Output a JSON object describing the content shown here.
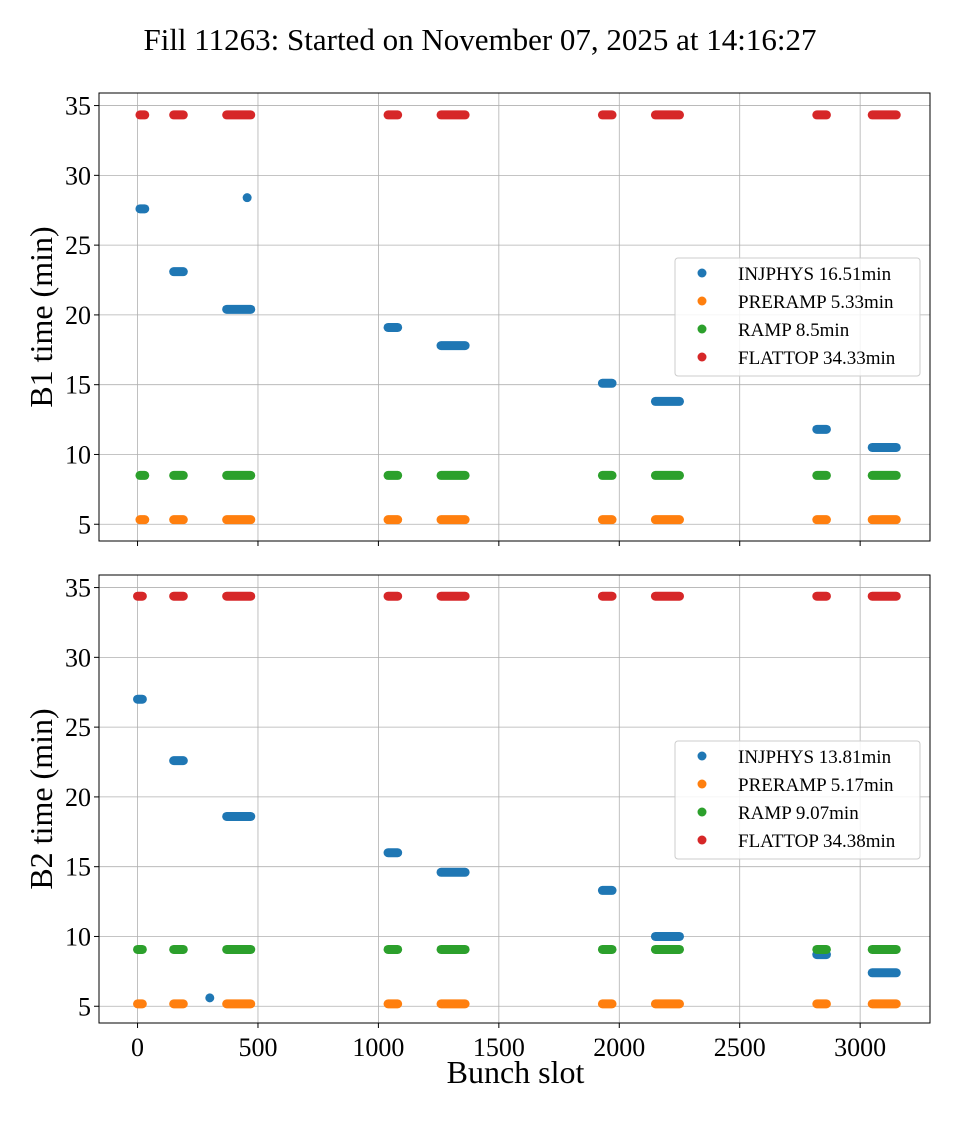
{
  "title": "Fill 11263: Started on November 07, 2025 at 14:16:27",
  "colors": {
    "INJPHYS": "#1f77b4",
    "PRERAMP": "#ff7f0e",
    "RAMP": "#2ca02c",
    "FLATTOP": "#d62728"
  },
  "chart_data": [
    {
      "type": "scatter",
      "ylabel": "B1 time (min)",
      "xlabel": "",
      "xlim": [
        -160,
        3290
      ],
      "ylim": [
        3.8,
        35.9
      ],
      "xticks": [
        0,
        500,
        1000,
        1500,
        2000,
        2500,
        3000
      ],
      "yticks": [
        5,
        10,
        15,
        20,
        25,
        30,
        35
      ],
      "grid": true,
      "legend_position": "center-right",
      "series": [
        {
          "name": "INJPHYS 16.51min",
          "key": "INJPHYS",
          "groups": [
            {
              "x": [
                10,
                30
              ],
              "y": 27.6
            },
            {
              "x": [
                150,
                190
              ],
              "y": 23.1
            },
            {
              "x": [
                370,
                470
              ],
              "y": 20.4
            },
            {
              "x": [
                455,
                455
              ],
              "y": 28.4
            },
            {
              "x": [
                1040,
                1080
              ],
              "y": 19.1
            },
            {
              "x": [
                1260,
                1360
              ],
              "y": 17.8
            },
            {
              "x": [
                1930,
                1970
              ],
              "y": 15.1
            },
            {
              "x": [
                2150,
                2250
              ],
              "y": 13.8
            },
            {
              "x": [
                2820,
                2860
              ],
              "y": 11.8
            },
            {
              "x": [
                3050,
                3150
              ],
              "y": 10.5
            }
          ]
        },
        {
          "name": "PRERAMP 5.33min",
          "key": "PRERAMP",
          "groups": [
            {
              "x": [
                10,
                30
              ],
              "y": 5.33
            },
            {
              "x": [
                150,
                190
              ],
              "y": 5.33
            },
            {
              "x": [
                370,
                470
              ],
              "y": 5.33
            },
            {
              "x": [
                1040,
                1080
              ],
              "y": 5.33
            },
            {
              "x": [
                1260,
                1360
              ],
              "y": 5.33
            },
            {
              "x": [
                1930,
                1970
              ],
              "y": 5.33
            },
            {
              "x": [
                2150,
                2250
              ],
              "y": 5.33
            },
            {
              "x": [
                2820,
                2860
              ],
              "y": 5.33
            },
            {
              "x": [
                3050,
                3150
              ],
              "y": 5.33
            }
          ]
        },
        {
          "name": "RAMP 8.5min",
          "key": "RAMP",
          "groups": [
            {
              "x": [
                10,
                30
              ],
              "y": 8.5
            },
            {
              "x": [
                150,
                190
              ],
              "y": 8.5
            },
            {
              "x": [
                370,
                470
              ],
              "y": 8.5
            },
            {
              "x": [
                1040,
                1080
              ],
              "y": 8.5
            },
            {
              "x": [
                1260,
                1360
              ],
              "y": 8.5
            },
            {
              "x": [
                1930,
                1970
              ],
              "y": 8.5
            },
            {
              "x": [
                2150,
                2250
              ],
              "y": 8.5
            },
            {
              "x": [
                2820,
                2860
              ],
              "y": 8.5
            },
            {
              "x": [
                3050,
                3150
              ],
              "y": 8.5
            }
          ]
        },
        {
          "name": "FLATTOP 34.33min",
          "key": "FLATTOP",
          "groups": [
            {
              "x": [
                10,
                30
              ],
              "y": 34.33
            },
            {
              "x": [
                150,
                190
              ],
              "y": 34.33
            },
            {
              "x": [
                370,
                470
              ],
              "y": 34.33
            },
            {
              "x": [
                1040,
                1080
              ],
              "y": 34.33
            },
            {
              "x": [
                1260,
                1360
              ],
              "y": 34.33
            },
            {
              "x": [
                1930,
                1970
              ],
              "y": 34.33
            },
            {
              "x": [
                2150,
                2250
              ],
              "y": 34.33
            },
            {
              "x": [
                2820,
                2860
              ],
              "y": 34.33
            },
            {
              "x": [
                3050,
                3150
              ],
              "y": 34.33
            }
          ]
        }
      ]
    },
    {
      "type": "scatter",
      "ylabel": "B2 time (min)",
      "xlabel": "Bunch slot",
      "xlim": [
        -160,
        3290
      ],
      "ylim": [
        3.8,
        35.9
      ],
      "xticks": [
        0,
        500,
        1000,
        1500,
        2000,
        2500,
        3000
      ],
      "yticks": [
        5,
        10,
        15,
        20,
        25,
        30,
        35
      ],
      "grid": true,
      "legend_position": "center-right",
      "series": [
        {
          "name": "INJPHYS 13.81min",
          "key": "INJPHYS",
          "groups": [
            {
              "x": [
                0,
                20
              ],
              "y": 27.0
            },
            {
              "x": [
                150,
                190
              ],
              "y": 22.6
            },
            {
              "x": [
                370,
                470
              ],
              "y": 18.6
            },
            {
              "x": [
                1040,
                1080
              ],
              "y": 16.0
            },
            {
              "x": [
                1260,
                1360
              ],
              "y": 14.6
            },
            {
              "x": [
                1930,
                1970
              ],
              "y": 13.3
            },
            {
              "x": [
                2150,
                2250
              ],
              "y": 10.0
            },
            {
              "x": [
                2820,
                2860
              ],
              "y": 8.7
            },
            {
              "x": [
                3050,
                3150
              ],
              "y": 7.4
            },
            {
              "x": [
                300,
                300
              ],
              "y": 5.6
            }
          ]
        },
        {
          "name": "PRERAMP 5.17min",
          "key": "PRERAMP",
          "groups": [
            {
              "x": [
                0,
                20
              ],
              "y": 5.17
            },
            {
              "x": [
                150,
                190
              ],
              "y": 5.17
            },
            {
              "x": [
                370,
                470
              ],
              "y": 5.17
            },
            {
              "x": [
                1040,
                1080
              ],
              "y": 5.17
            },
            {
              "x": [
                1260,
                1360
              ],
              "y": 5.17
            },
            {
              "x": [
                1930,
                1970
              ],
              "y": 5.17
            },
            {
              "x": [
                2150,
                2250
              ],
              "y": 5.17
            },
            {
              "x": [
                2820,
                2860
              ],
              "y": 5.17
            },
            {
              "x": [
                3050,
                3150
              ],
              "y": 5.17
            }
          ]
        },
        {
          "name": "RAMP 9.07min",
          "key": "RAMP",
          "groups": [
            {
              "x": [
                0,
                20
              ],
              "y": 9.07
            },
            {
              "x": [
                150,
                190
              ],
              "y": 9.07
            },
            {
              "x": [
                370,
                470
              ],
              "y": 9.07
            },
            {
              "x": [
                1040,
                1080
              ],
              "y": 9.07
            },
            {
              "x": [
                1260,
                1360
              ],
              "y": 9.07
            },
            {
              "x": [
                1930,
                1970
              ],
              "y": 9.07
            },
            {
              "x": [
                2150,
                2250
              ],
              "y": 9.07
            },
            {
              "x": [
                2820,
                2860
              ],
              "y": 9.07
            },
            {
              "x": [
                3050,
                3150
              ],
              "y": 9.07
            }
          ]
        },
        {
          "name": "FLATTOP 34.38min",
          "key": "FLATTOP",
          "groups": [
            {
              "x": [
                0,
                20
              ],
              "y": 34.38
            },
            {
              "x": [
                150,
                190
              ],
              "y": 34.38
            },
            {
              "x": [
                370,
                470
              ],
              "y": 34.38
            },
            {
              "x": [
                1040,
                1080
              ],
              "y": 34.38
            },
            {
              "x": [
                1260,
                1360
              ],
              "y": 34.38
            },
            {
              "x": [
                1930,
                1970
              ],
              "y": 34.38
            },
            {
              "x": [
                2150,
                2250
              ],
              "y": 34.38
            },
            {
              "x": [
                2820,
                2860
              ],
              "y": 34.38
            },
            {
              "x": [
                3050,
                3150
              ],
              "y": 34.38
            }
          ]
        }
      ]
    }
  ]
}
